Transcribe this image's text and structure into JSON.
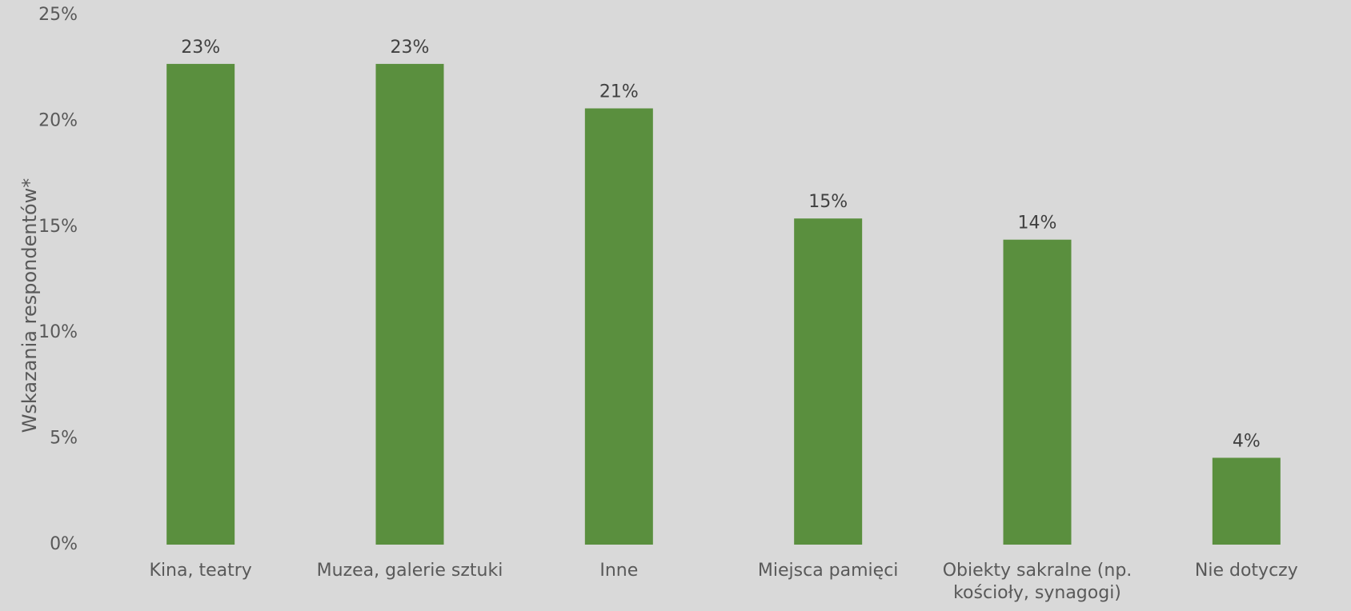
{
  "chart_data": {
    "type": "bar",
    "title": "",
    "xlabel": "",
    "ylabel": "Wskazania respondentów*",
    "ylim": [
      0,
      25
    ],
    "yticks": [
      "0%",
      "5%",
      "10%",
      "15%",
      "20%",
      "25%"
    ],
    "ytick_values": [
      0,
      5,
      10,
      15,
      20,
      25
    ],
    "grid": false,
    "legend": "none",
    "bar_color": "#5a8f3e",
    "categories": [
      [
        "Kina, teatry"
      ],
      [
        "Muzea, galerie sztuki"
      ],
      [
        "Inne"
      ],
      [
        "Miejsca pamięci"
      ],
      [
        "Obiekty sakralne (np.",
        "kościoły, synagogi)"
      ],
      [
        "Nie dotyczy"
      ]
    ],
    "values": [
      22.7,
      22.7,
      20.6,
      15.4,
      14.4,
      4.1
    ],
    "data_labels": [
      "23%",
      "23%",
      "21%",
      "15%",
      "14%",
      "4%"
    ]
  }
}
